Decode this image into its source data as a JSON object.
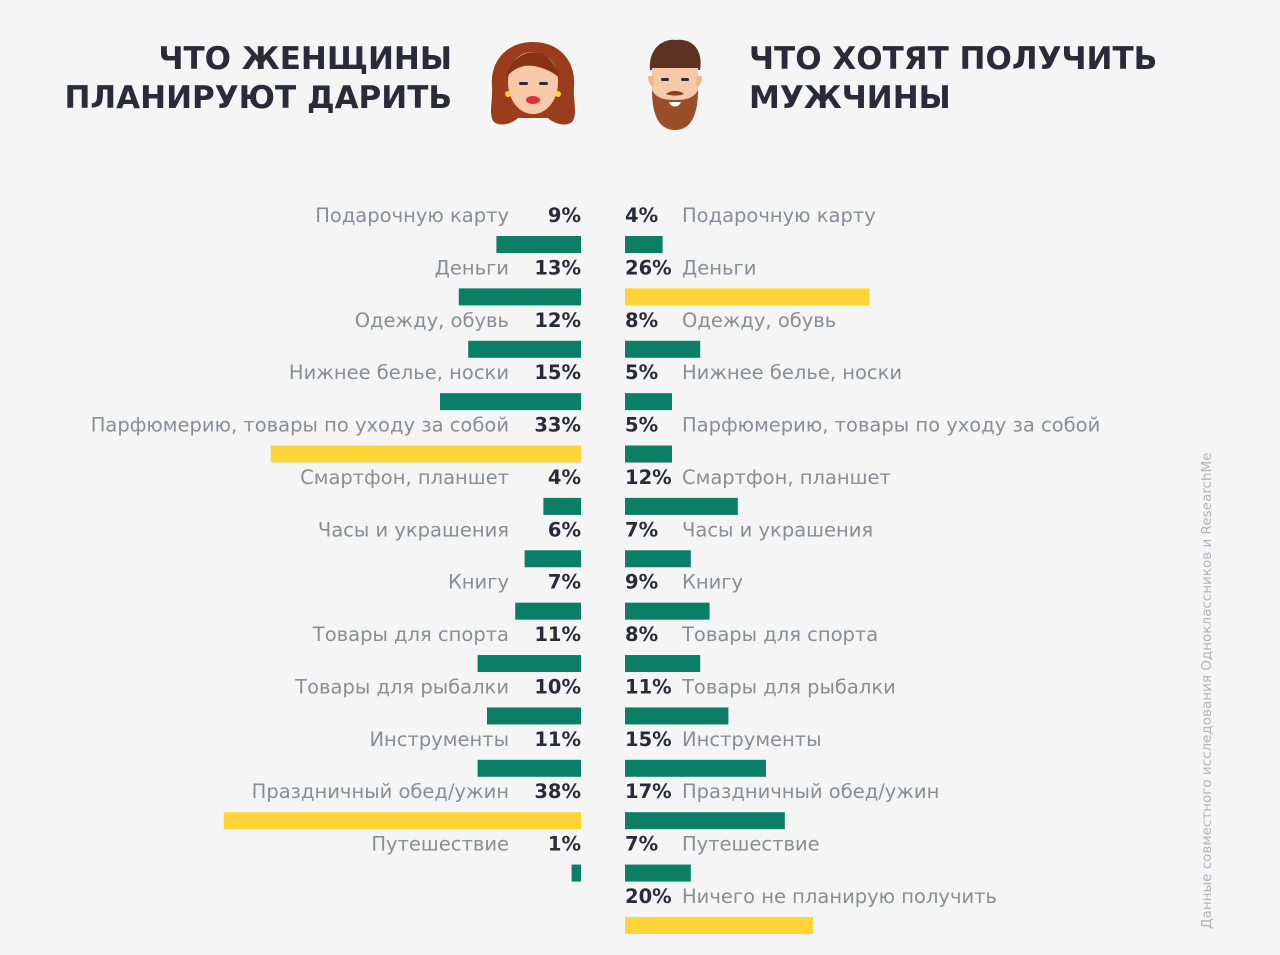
{
  "header": {
    "left_title": "ЧТО ЖЕНЩИНЫ\nПЛАНИРУЮТ ДАРИТЬ",
    "right_title": "ЧТО ХОТЯТ ПОЛУЧИТЬ\nМУЖЧИНЫ",
    "left_avatar_icon": "woman-avatar-icon",
    "right_avatar_icon": "bearded-man-avatar-icon"
  },
  "source_note": "Данные совместного исследования Одноклассников и ResearchMe",
  "colors": {
    "background": "#f5f5f6",
    "bar_default": "#0b7f66",
    "bar_highlight": "#fdd538",
    "title": "#2a2b39",
    "label": "#8b8d96"
  },
  "chart_data": [
    {
      "type": "bar",
      "orientation": "horizontal",
      "direction": "right-to-left",
      "unit": "%",
      "title": "ЧТО ЖЕНЩИНЫ ПЛАНИРУЮТ ДАРИТЬ",
      "categories": [
        "Подарочную карту",
        "Деньги",
        "Одежду, обувь",
        "Нижнее белье, носки",
        "Парфюмерию, товары по уходу за собой",
        "Смартфон, планшет",
        "Часы и украшения",
        "Книгу",
        "Товары для спорта",
        "Товары для рыбалки",
        "Инструменты",
        "Праздничный обед/ужин",
        "Путешествие"
      ],
      "values": [
        9,
        13,
        12,
        15,
        33,
        4,
        6,
        7,
        11,
        10,
        11,
        38,
        1
      ],
      "highlighted": [
        "Парфюмерию, товары по уходу за собой",
        "Праздничный обед/ужин"
      ]
    },
    {
      "type": "bar",
      "orientation": "horizontal",
      "direction": "left-to-right",
      "unit": "%",
      "title": "ЧТО ХОТЯТ ПОЛУЧИТЬ МУЖЧИНЫ",
      "categories": [
        "Подарочную карту",
        "Деньги",
        "Одежду, обувь",
        "Нижнее белье, носки",
        "Парфюмерию, товары по уходу за собой",
        "Смартфон, планшет",
        "Часы и украшения",
        "Книгу",
        "Товары для спорта",
        "Товары для рыбалки",
        "Инструменты",
        "Праздничный обед/ужин",
        "Путешествие",
        "Ничего не планирую получить"
      ],
      "values": [
        4,
        26,
        8,
        5,
        5,
        12,
        7,
        9,
        8,
        11,
        15,
        17,
        7,
        20
      ],
      "highlighted": [
        "Деньги",
        "Ничего не планирую получить"
      ]
    }
  ]
}
